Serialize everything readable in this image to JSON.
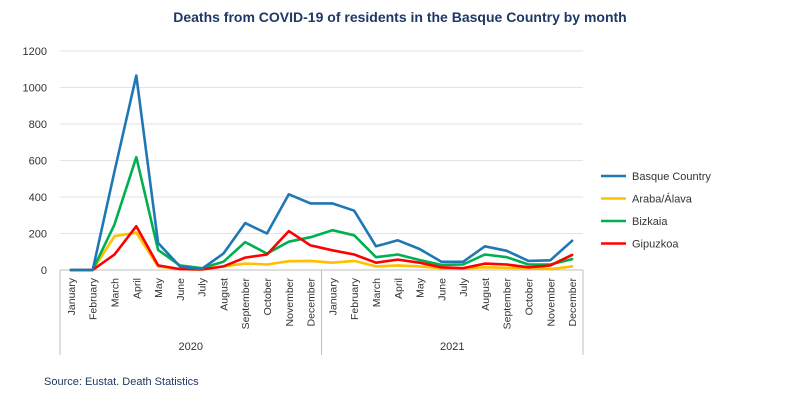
{
  "chart_data": {
    "type": "line",
    "title": "Deaths from COVID-19 of residents in the Basque Country by month",
    "xlabel": "",
    "ylabel": "",
    "ylim": [
      0,
      1200
    ],
    "yticks": [
      0,
      200,
      400,
      600,
      800,
      1000,
      1200
    ],
    "grid": true,
    "legend_position": "right",
    "months": [
      "January",
      "February",
      "March",
      "April",
      "May",
      "June",
      "July",
      "August",
      "September",
      "October",
      "November",
      "December",
      "January",
      "February",
      "March",
      "April",
      "May",
      "June",
      "July",
      "August",
      "September",
      "October",
      "November",
      "December"
    ],
    "years": [
      {
        "label": "2020",
        "start": 0,
        "end": 11
      },
      {
        "label": "2021",
        "start": 12,
        "end": 23
      }
    ],
    "series": [
      {
        "name": "Basque Country",
        "color": "#1f77b4",
        "values": [
          0,
          0,
          540,
          1065,
          148,
          20,
          5,
          90,
          257,
          200,
          415,
          365,
          365,
          325,
          130,
          163,
          115,
          45,
          45,
          130,
          105,
          50,
          53,
          160
        ]
      },
      {
        "name": "Araba/Álava",
        "color": "#ffc000",
        "values": [
          0,
          0,
          185,
          205,
          20,
          5,
          2,
          20,
          35,
          30,
          48,
          50,
          40,
          50,
          20,
          25,
          20,
          10,
          8,
          15,
          12,
          10,
          5,
          20
        ]
      },
      {
        "name": "Bizkaia",
        "color": "#00b050",
        "values": [
          0,
          0,
          250,
          618,
          110,
          25,
          10,
          45,
          153,
          90,
          155,
          180,
          218,
          190,
          70,
          85,
          55,
          28,
          30,
          85,
          70,
          30,
          30,
          60
        ]
      },
      {
        "name": "Gipuzkoa",
        "color": "#ff0000",
        "values": [
          0,
          0,
          85,
          240,
          25,
          5,
          3,
          20,
          68,
          85,
          213,
          135,
          108,
          85,
          40,
          57,
          40,
          15,
          10,
          35,
          30,
          15,
          25,
          83
        ]
      }
    ],
    "source": "Source: Eustat. Death Statistics"
  }
}
